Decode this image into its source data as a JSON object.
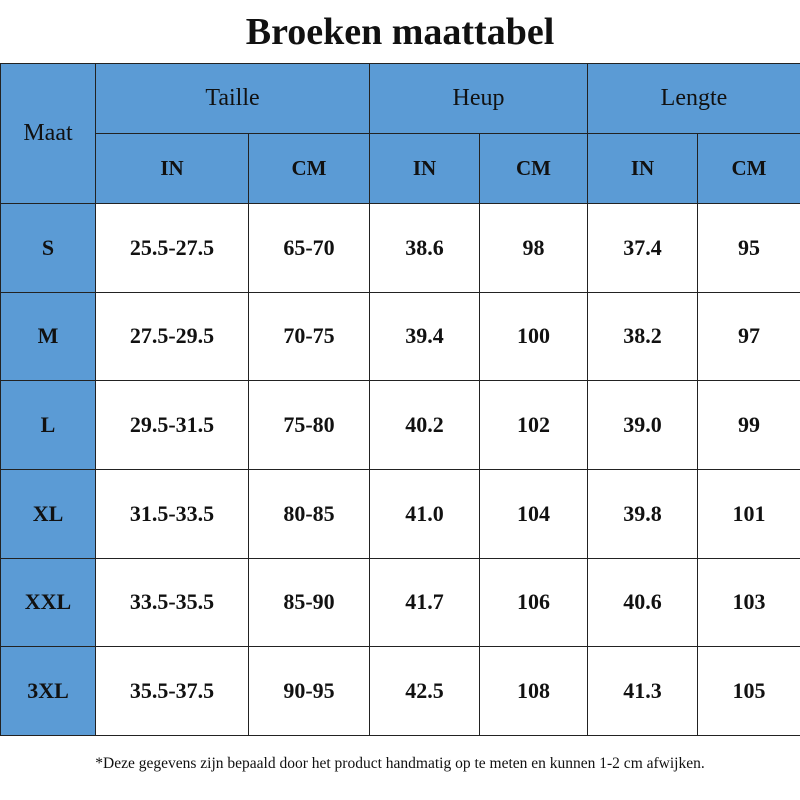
{
  "title": "Broeken maattabel",
  "table": {
    "corner": "Maat",
    "groups": [
      "Taille",
      "Heup",
      "Lengte"
    ],
    "subheaders": [
      "IN",
      "CM",
      "IN",
      "CM",
      "IN",
      "CM"
    ],
    "rows": [
      [
        "S",
        "25.5-27.5",
        "65-70",
        "38.6",
        "98",
        "37.4",
        "95"
      ],
      [
        "M",
        "27.5-29.5",
        "70-75",
        "39.4",
        "100",
        "38.2",
        "97"
      ],
      [
        "L",
        "29.5-31.5",
        "75-80",
        "40.2",
        "102",
        "39.0",
        "99"
      ],
      [
        "XL",
        "31.5-33.5",
        "80-85",
        "41.0",
        "104",
        "39.8",
        "101"
      ],
      [
        "XXL",
        "33.5-35.5",
        "85-90",
        "41.7",
        "106",
        "40.6",
        "103"
      ],
      [
        "3XL",
        "35.5-37.5",
        "90-95",
        "42.5",
        "108",
        "41.3",
        "105"
      ]
    ]
  },
  "footnote": "*Deze gegevens zijn bepaald door het product handmatig op te meten en kunnen 1-2 cm afwijken."
}
